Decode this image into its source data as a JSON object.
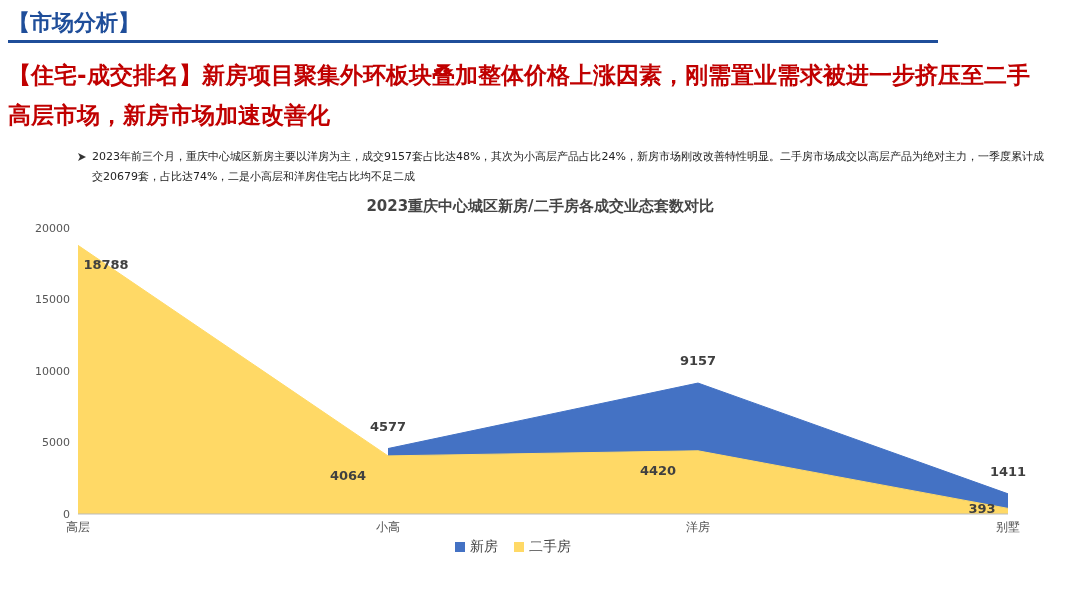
{
  "chart_data": {
    "type": "area",
    "title": "2023重庆中心城区新房/二手房各成交业态套数对比",
    "annotations": [
      "【市场分析】",
      "【住宅-成交排名】新房项目聚集外环板块叠加整体价格上涨因素，刚需置业需求被进一步挤压至二手高层市场，新房市场加速改善化",
      "2023年前三个月，重庆中心城区新房主要以洋房为主，成交9157套占比达48%，其次为小高层产品占比24%，新房市场刚改改善特性明显。二手房市场成交以高层产品为绝对主力，一季度累计成交20679套，占比达74%，二是小高层和洋房住宅占比均不足二成"
    ],
    "categories": [
      "高层",
      "小高",
      "洋房",
      "别墅"
    ],
    "series": [
      {
        "name": "新房",
        "color": "#4472c4",
        "values": [
          null,
          4577,
          9157,
          1411
        ]
      },
      {
        "name": "二手房",
        "color": "#ffd966",
        "values": [
          18788,
          4064,
          4420,
          393
        ]
      }
    ],
    "ylim": [
      0,
      20000
    ],
    "yticks": [
      0,
      5000,
      10000,
      15000,
      20000
    ],
    "data_labels": true,
    "legend": "bottom"
  }
}
